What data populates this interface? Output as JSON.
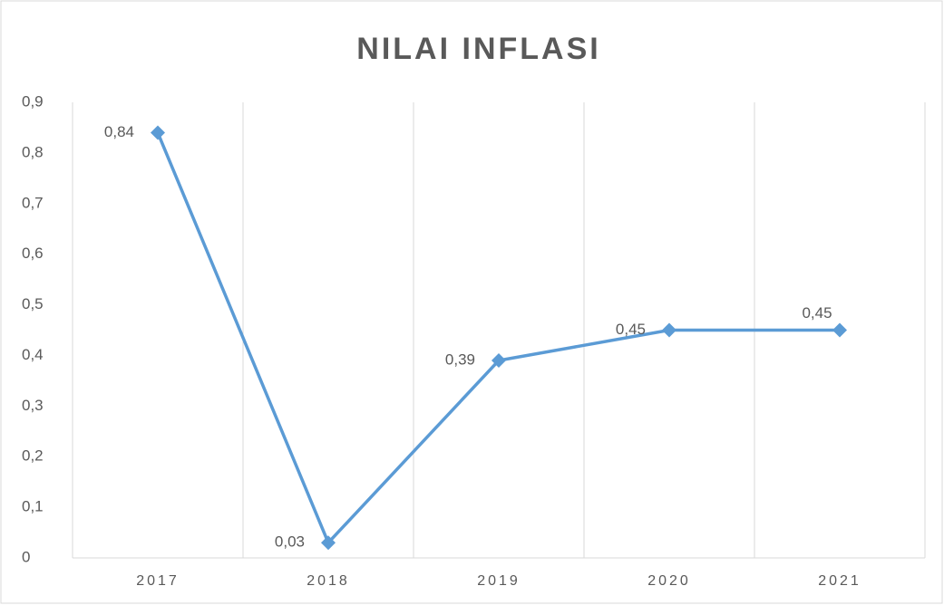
{
  "chart_data": {
    "type": "line",
    "title": "NILAI INFLASI",
    "categories": [
      "2017",
      "2018",
      "2019",
      "2020",
      "2021"
    ],
    "series": [
      {
        "name": "Nilai Inflasi",
        "color": "#5b9bd5",
        "values": [
          0.84,
          0.03,
          0.39,
          0.45,
          0.45
        ],
        "value_labels": [
          "0,84",
          "0,03",
          "0,39",
          "0,45",
          "0,45"
        ]
      }
    ],
    "ylim": [
      0,
      0.9
    ],
    "yticks": [
      0,
      {
        "value": 0.1,
        "label": "0,1"
      },
      {
        "value": 0.2,
        "label": "0,2"
      },
      {
        "value": 0.3,
        "label": "0,3"
      },
      {
        "value": 0.4,
        "label": "0,4"
      },
      {
        "value": 0.5,
        "label": "0,5"
      },
      {
        "value": 0.6,
        "label": "0,6"
      },
      {
        "value": 0.7,
        "label": "0,7"
      },
      {
        "value": 0.8,
        "label": "0,8"
      },
      {
        "value": 0.9,
        "label": "0,9"
      }
    ],
    "grid": "x"
  }
}
